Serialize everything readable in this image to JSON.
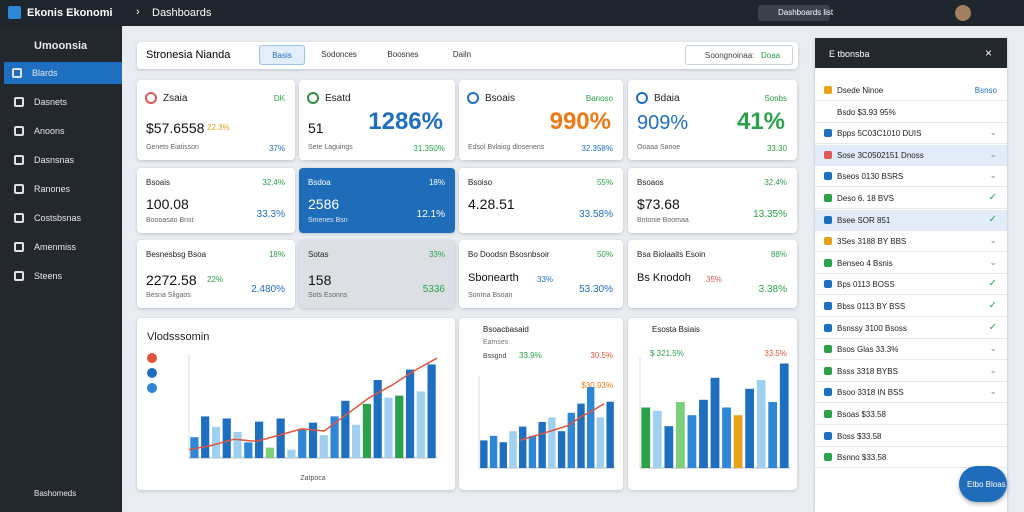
{
  "topbar": {
    "app": "Ekonis Ekonomi",
    "breadcrumb": "Dashboards",
    "search": "Dashboards list"
  },
  "sidebar": {
    "title": "Umoonsia",
    "items": [
      "Blards",
      "Dasnets",
      "Anoons",
      "Dasnsnas",
      "Ranones",
      "Costsbsnas",
      "Amenmiss",
      "Steens"
    ],
    "active": 0,
    "footer": "Bashomeds"
  },
  "filter": {
    "title": "Stronesia Nianda",
    "tabs": [
      "Basis",
      "Sodonces",
      "Boosnes",
      "Dailn"
    ],
    "active_tab": 0,
    "date": "Soongnoinaa:",
    "date_value": "Doaa"
  },
  "cards": [
    {
      "title": "Zsaia",
      "corner": "DK",
      "value": "$57.6558",
      "change": "22.3%",
      "footer": "Genets Eiatisson",
      "footer_value": "37%",
      "value_color": "#111",
      "change_color": "#e8a21a",
      "icon": "#e15a5a"
    },
    {
      "title": "Esatd",
      "corner": "",
      "value": "51",
      "change": "1286%",
      "footer": "Sete Laguings",
      "footer_value": "31.350%",
      "value_color": "#111",
      "change_color": "#1f6fc0",
      "big": true,
      "icon": "#2f8f3f"
    },
    {
      "title": "Bsoais",
      "corner": "Banoso",
      "value": "",
      "change": "990%",
      "footer": "Edsol Bvlaiog dlosenens",
      "footer_value": "32.358%",
      "value_color": "#111",
      "change_color": "#ee7a12",
      "big": true,
      "icon": "#1f6fc0"
    },
    {
      "title": "Bdaia",
      "corner": "Sonbs",
      "value": "909%",
      "change": "41%",
      "footer": "Ooaaa Sanoe",
      "footer_value": "33.30",
      "value_color": "#1f6fc0",
      "change_color": "#2aa14a",
      "big": true,
      "icon": "#1f6fc0"
    },
    {
      "title": "Bsoais",
      "corner": "32.4%",
      "value": "100.08",
      "change": "",
      "footer": "Boooasao Bnst",
      "footer_value": "33.3%"
    },
    {
      "title": "Bsdoa",
      "corner": "18%",
      "value": "2586",
      "change": "",
      "footer": "Smenes Bsn",
      "footer_value": "12.1%",
      "style": "active"
    },
    {
      "title": "Bsoiso",
      "corner": "55%",
      "value": "4.28.51",
      "change": "",
      "footer": "",
      "footer_value": "33.58%"
    },
    {
      "title": "Bsoaos",
      "corner": "32.4%",
      "value": "$73.68",
      "change": "",
      "footer": "Bntonie Boomaa",
      "footer_value": "13.35%"
    },
    {
      "title": "Besnesbsg Bsoa",
      "corner": "18%",
      "value": "2272.58",
      "change": "22%",
      "footer": "Besna Sligaos",
      "footer_value": "2.480%",
      "change_color": "#2aa14a"
    },
    {
      "title": "Sotas",
      "corner": "33%",
      "value": "158",
      "change": "",
      "footer": "Sots Esonns",
      "footer_value": "5336",
      "style": "muted"
    },
    {
      "title": "Bo Doodsn Bsosnbsoir",
      "corner": "50%",
      "value": "Sbonearth",
      "change": "33%",
      "footer": "Sonrna Bsoan",
      "footer_value": "53.30%",
      "small": true,
      "change_color": "#1f6fc0"
    },
    {
      "title": "Bsa Biolaaits Esoin",
      "corner": "88%",
      "value": "Bs Knodoh",
      "change": "35%",
      "footer": "",
      "footer_value": "3.38%",
      "small": true,
      "change_color": "#e15a5a"
    }
  ],
  "chart_data": [
    {
      "type": "bar",
      "title": "Vlodsssomin",
      "xlabel": "Zatpoca",
      "ylim": [
        0,
        100
      ],
      "values": [
        20,
        40,
        30,
        38,
        25,
        15,
        35,
        10,
        38,
        8,
        28,
        34,
        22,
        40,
        55,
        32,
        52,
        75,
        58,
        60,
        85,
        64,
        90
      ],
      "colors": [
        "#2e86d6",
        "#1f6fc0",
        "#9fd0f0",
        "#1f6fc0",
        "#9fd0f0",
        "#2e86d6",
        "#1f6fc0",
        "#7dd07a",
        "#1f6fc0",
        "#9fd0f0",
        "#2e86d6",
        "#1f6fc0",
        "#9fd0f0",
        "#2e86d6",
        "#1f6fc0",
        "#9fd0f0",
        "#2aa14a",
        "#1f6fc0",
        "#9fd0f0",
        "#2aa14a",
        "#1f6fc0",
        "#9fd0f0",
        "#1f6fc0"
      ],
      "line": [
        8,
        12,
        18,
        16,
        22,
        28,
        26,
        42,
        58,
        70,
        84,
        96
      ],
      "line_color": "#e2553a"
    },
    {
      "type": "bar",
      "title": "Bsoacbasaid",
      "subtitle": "Eamses",
      "note": "Bssgnd",
      "note_value": "33.9%",
      "note_value2": "30.5%",
      "annotation": "$30.93%",
      "ylim": [
        0,
        100
      ],
      "values": [
        30,
        35,
        28,
        40,
        45,
        35,
        50,
        55,
        40,
        60,
        70,
        88,
        55,
        72
      ],
      "colors": [
        "#1f6fc0",
        "#2e86d6",
        "#1f6fc0",
        "#9fd0f0",
        "#1f6fc0",
        "#2e86d6",
        "#1f6fc0",
        "#9fd0f0",
        "#1f6fc0",
        "#2e86d6",
        "#1f6fc0",
        "#2e86d6",
        "#9fd0f0",
        "#1f6fc0"
      ],
      "line": [
        30,
        34,
        38,
        42,
        46,
        55,
        62,
        70
      ],
      "line_color": "#e2553a"
    },
    {
      "type": "bar",
      "title": "Esosta Bsiais",
      "note_value": "$ 321.5%",
      "note_value2": "33.5%",
      "ylim": [
        0,
        100
      ],
      "values": [
        55,
        52,
        38,
        60,
        48,
        62,
        82,
        55,
        48,
        72,
        80,
        60,
        95
      ],
      "colors": [
        "#2aa14a",
        "#9fd0f0",
        "#1f6fc0",
        "#7dd07a",
        "#2e86d6",
        "#1f6fc0",
        "#1f6fc0",
        "#2e86d6",
        "#e8a21a",
        "#1f6fc0",
        "#9fd0f0",
        "#2e86d6",
        "#1f6fc0"
      ]
    }
  ],
  "panel": {
    "title": "E tbonsba",
    "rows": [
      {
        "text": "Dsede Ninoe",
        "value": "Bsnso",
        "icon": "#e8a21a"
      },
      {
        "text": "Bsdo $3.93 95%",
        "icon": "#fff"
      },
      {
        "text": "Bpps 5C03C1010 DUIS",
        "icon": "#1f6fc0",
        "mark": "chevron"
      },
      {
        "text": "Sose 3C0502151 Dnoss",
        "icon": "#e15a5a",
        "mark": "chevron",
        "hl": true
      },
      {
        "text": "Bseos 0130 BSRS",
        "icon": "#1f6fc0",
        "mark": "chevron"
      },
      {
        "text": "Deso 6. 18 BVS",
        "icon": "#2aa14a",
        "mark": "check"
      },
      {
        "text": "Bsee SOR 851",
        "icon": "#1f6fc0",
        "mark": "check",
        "hl": true
      },
      {
        "text": "3Ses 3188 BY BBS",
        "icon": "#e8a21a",
        "mark": "chevron"
      },
      {
        "text": "Benseo 4 Bsnis",
        "icon": "#2aa14a",
        "mark": "chevron"
      },
      {
        "text": "Bps 0113 BOSS",
        "icon": "#1f6fc0",
        "mark": "check"
      },
      {
        "text": "Bbss 0113 BY BSS",
        "icon": "#1f6fc0",
        "mark": "check"
      },
      {
        "text": "Bsnssy 3100 Bsoss",
        "icon": "#1f6fc0",
        "mark": "check"
      },
      {
        "text": "Bsos Glas 33.3%",
        "icon": "#2aa14a",
        "mark": "chevron"
      },
      {
        "text": "Bsss 3318 BYBS",
        "icon": "#2aa14a",
        "mark": "chevron"
      },
      {
        "text": "Bsoo 3318 IN BSS",
        "icon": "#1f6fc0",
        "mark": "chevron"
      },
      {
        "text": "Bsoas $33.58",
        "icon": "#2aa14a"
      },
      {
        "text": "Boss $33.58",
        "icon": "#1f6fc0"
      },
      {
        "text": "Bsnno $33.58",
        "icon": "#2aa14a"
      }
    ],
    "button": "Etbo Bloas"
  }
}
